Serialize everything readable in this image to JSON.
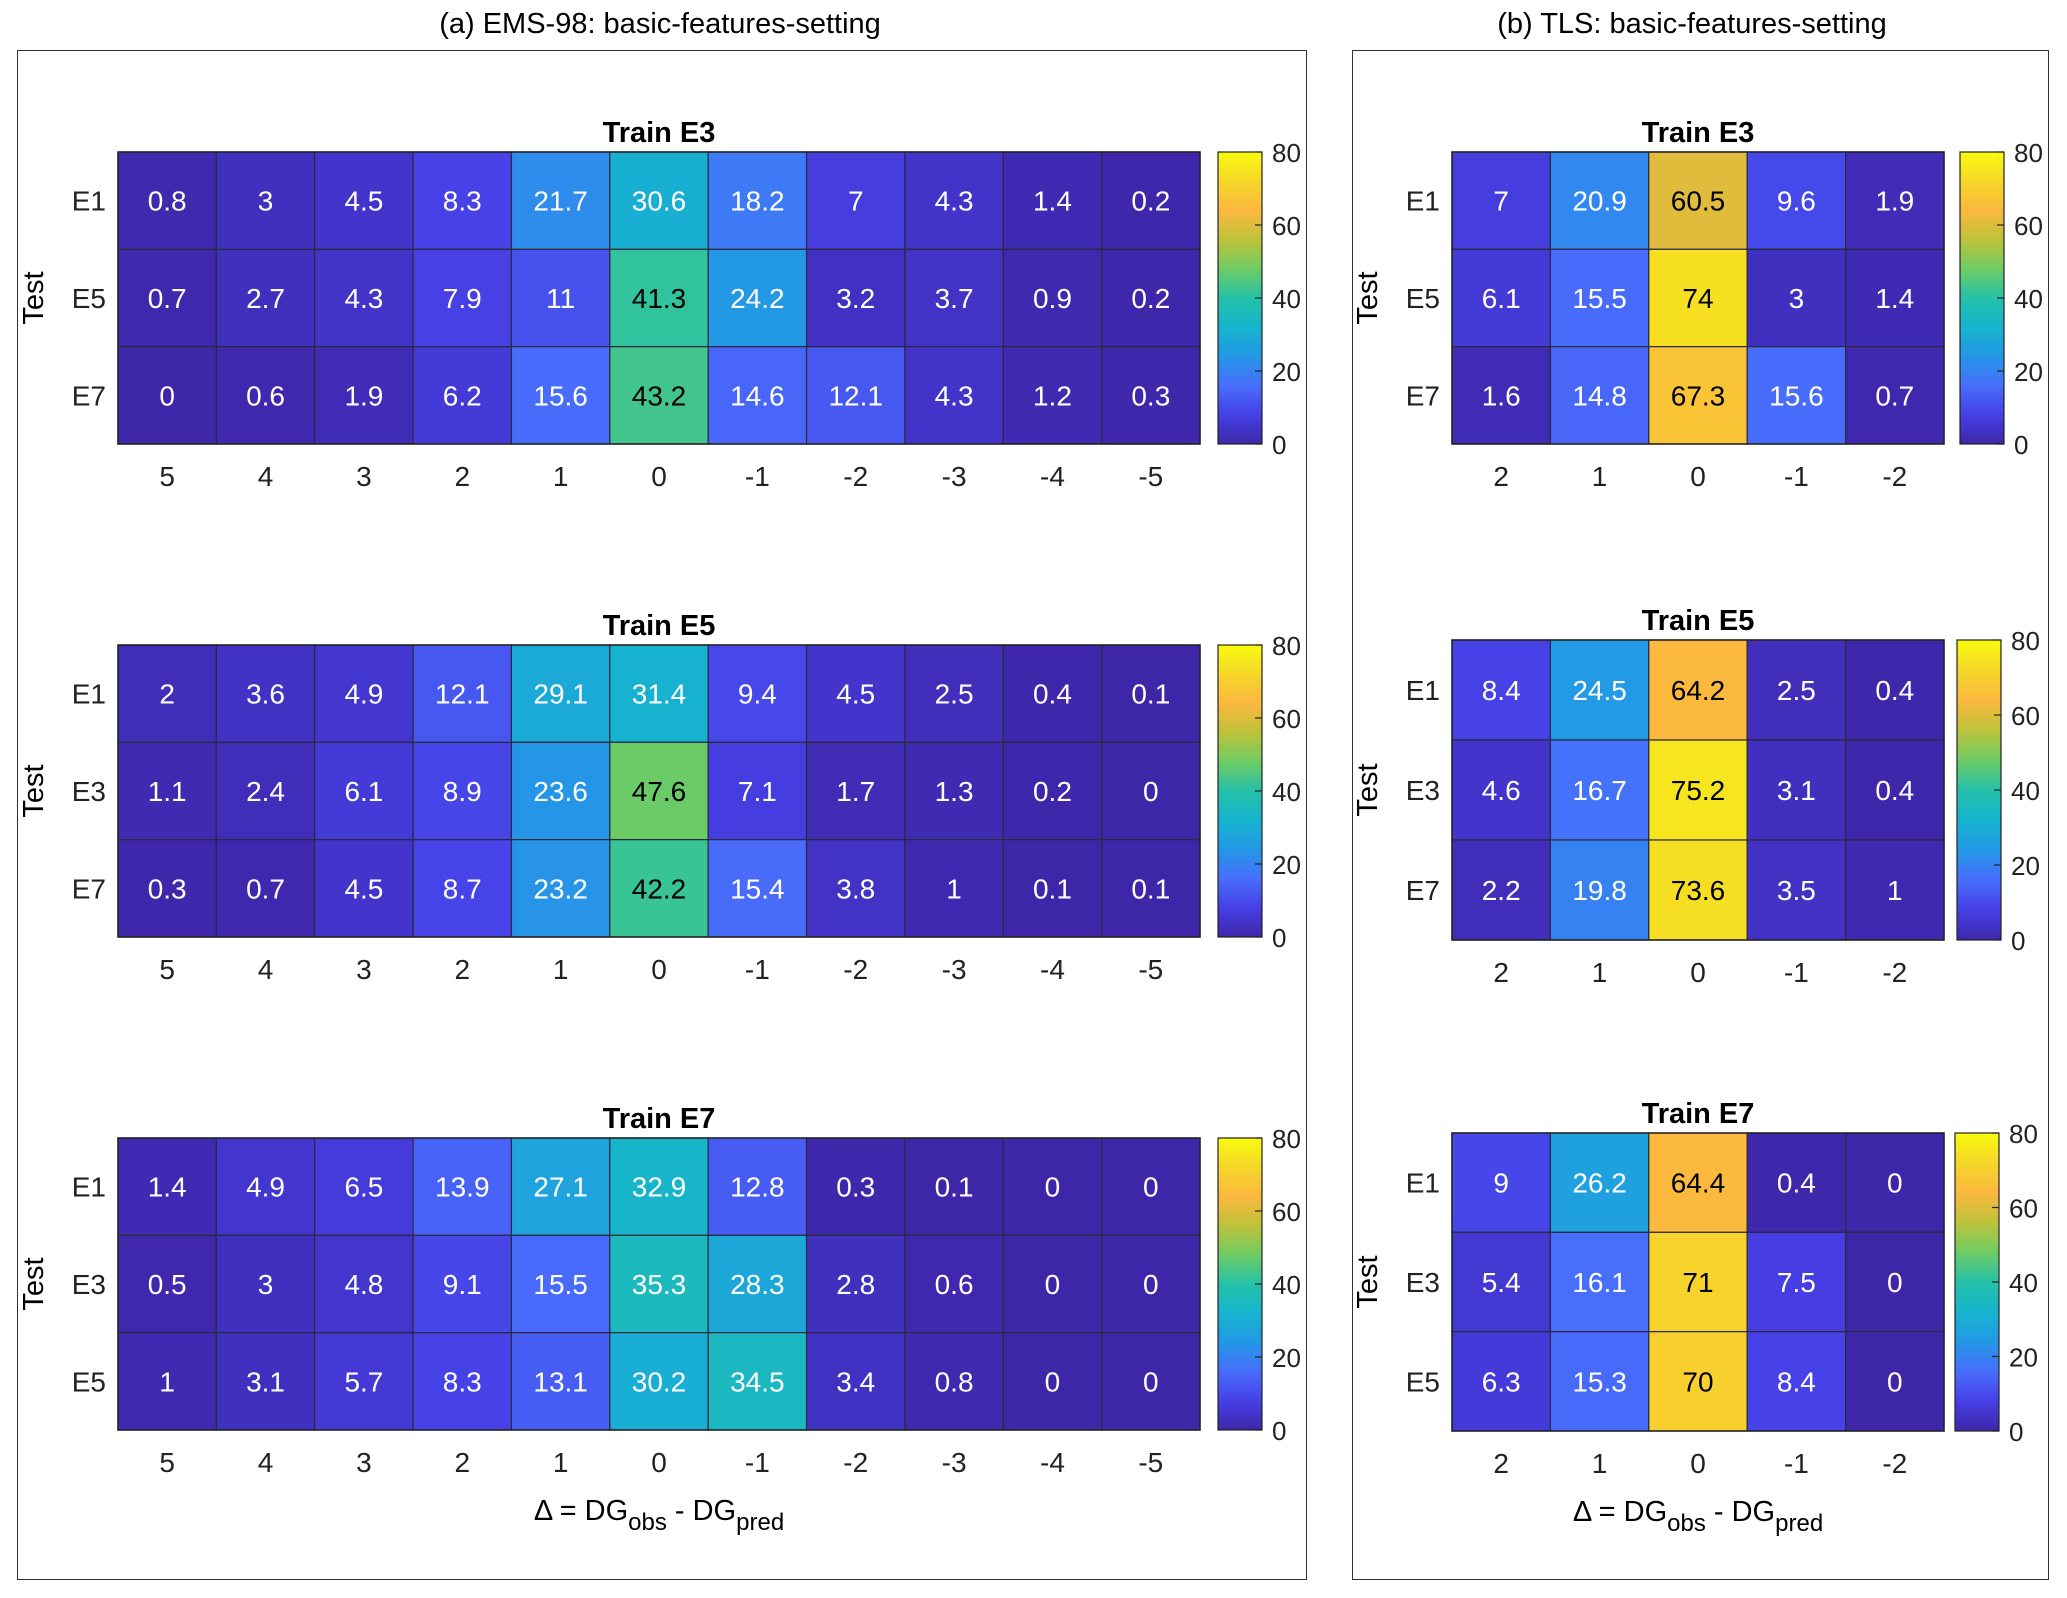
{
  "panels": {
    "a": {
      "title": "(a) EMS-98: basic-features-setting"
    },
    "b": {
      "title": "(b) TLS: basic-features-setting"
    }
  },
  "common": {
    "ylabel": "Test",
    "xlabel_main": "Δ = DG",
    "xlabel_sub1": "obs",
    "xlabel_mid": " - DG",
    "xlabel_sub2": "pred",
    "colorbar_ticks": [
      "0",
      "20",
      "40",
      "60",
      "80"
    ],
    "colormap": "parula",
    "clim": [
      0,
      80
    ]
  },
  "chart_data": [
    {
      "type": "heatmap",
      "panel": "a",
      "title": "Train E3",
      "x": [
        "5",
        "4",
        "3",
        "2",
        "1",
        "0",
        "-1",
        "-2",
        "-3",
        "-4",
        "-5"
      ],
      "y": [
        "E1",
        "E5",
        "E7"
      ],
      "values": [
        [
          0.8,
          3,
          4.5,
          8.3,
          21.7,
          30.6,
          18.2,
          7,
          4.3,
          1.4,
          0.2
        ],
        [
          0.7,
          2.7,
          4.3,
          7.9,
          11,
          41.3,
          24.2,
          3.2,
          3.7,
          0.9,
          0.2
        ],
        [
          0,
          0.6,
          1.9,
          6.2,
          15.6,
          43.2,
          14.6,
          12.1,
          4.3,
          1.2,
          0.3
        ]
      ],
      "labels": [
        [
          "0.8",
          "3",
          "4.5",
          "8.3",
          "21.7",
          "30.6",
          "18.2",
          "7",
          "4.3",
          "1.4",
          "0.2"
        ],
        [
          "0.7",
          "2.7",
          "4.3",
          "7.9",
          "11",
          "41.3",
          "24.2",
          "3.2",
          "3.7",
          "0.9",
          "0.2"
        ],
        [
          "0",
          "0.6",
          "1.9",
          "6.2",
          "15.6",
          "43.2",
          "14.6",
          "12.1",
          "4.3",
          "1.2",
          "0.3"
        ]
      ]
    },
    {
      "type": "heatmap",
      "panel": "a",
      "title": "Train E5",
      "x": [
        "5",
        "4",
        "3",
        "2",
        "1",
        "0",
        "-1",
        "-2",
        "-3",
        "-4",
        "-5"
      ],
      "y": [
        "E1",
        "E3",
        "E7"
      ],
      "values": [
        [
          2,
          3.6,
          4.9,
          12.1,
          29.1,
          31.4,
          9.4,
          4.5,
          2.5,
          0.4,
          0.1
        ],
        [
          1.1,
          2.4,
          6.1,
          8.9,
          23.6,
          47.6,
          7.1,
          1.7,
          1.3,
          0.2,
          0
        ],
        [
          0.3,
          0.7,
          4.5,
          8.7,
          23.2,
          42.2,
          15.4,
          3.8,
          1,
          0.1,
          0.1
        ]
      ],
      "labels": [
        [
          "2",
          "3.6",
          "4.9",
          "12.1",
          "29.1",
          "31.4",
          "9.4",
          "4.5",
          "2.5",
          "0.4",
          "0.1"
        ],
        [
          "1.1",
          "2.4",
          "6.1",
          "8.9",
          "23.6",
          "47.6",
          "7.1",
          "1.7",
          "1.3",
          "0.2",
          "0"
        ],
        [
          "0.3",
          "0.7",
          "4.5",
          "8.7",
          "23.2",
          "42.2",
          "15.4",
          "3.8",
          "1",
          "0.1",
          "0.1"
        ]
      ]
    },
    {
      "type": "heatmap",
      "panel": "a",
      "title": "Train E7",
      "x": [
        "5",
        "4",
        "3",
        "2",
        "1",
        "0",
        "-1",
        "-2",
        "-3",
        "-4",
        "-5"
      ],
      "y": [
        "E1",
        "E3",
        "E5"
      ],
      "values": [
        [
          1.4,
          4.9,
          6.5,
          13.9,
          27.1,
          32.9,
          12.8,
          0.3,
          0.1,
          0,
          0
        ],
        [
          0.5,
          3,
          4.8,
          9.1,
          15.5,
          35.3,
          28.3,
          2.8,
          0.6,
          0,
          0
        ],
        [
          1,
          3.1,
          5.7,
          8.3,
          13.1,
          30.2,
          34.5,
          3.4,
          0.8,
          0,
          0
        ]
      ],
      "labels": [
        [
          "1.4",
          "4.9",
          "6.5",
          "13.9",
          "27.1",
          "32.9",
          "12.8",
          "0.3",
          "0.1",
          "0",
          "0"
        ],
        [
          "0.5",
          "3",
          "4.8",
          "9.1",
          "15.5",
          "35.3",
          "28.3",
          "2.8",
          "0.6",
          "0",
          "0"
        ],
        [
          "1",
          "3.1",
          "5.7",
          "8.3",
          "13.1",
          "30.2",
          "34.5",
          "3.4",
          "0.8",
          "0",
          "0"
        ]
      ]
    },
    {
      "type": "heatmap",
      "panel": "b",
      "title": "Train E3",
      "x": [
        "2",
        "1",
        "0",
        "-1",
        "-2"
      ],
      "y": [
        "E1",
        "E5",
        "E7"
      ],
      "values": [
        [
          7,
          20.9,
          60.5,
          9.6,
          1.9
        ],
        [
          6.1,
          15.5,
          74,
          3,
          1.4
        ],
        [
          1.6,
          14.8,
          67.3,
          15.6,
          0.7
        ]
      ],
      "labels": [
        [
          "7",
          "20.9",
          "60.5",
          "9.6",
          "1.9"
        ],
        [
          "6.1",
          "15.5",
          "74",
          "3",
          "1.4"
        ],
        [
          "1.6",
          "14.8",
          "67.3",
          "15.6",
          "0.7"
        ]
      ]
    },
    {
      "type": "heatmap",
      "panel": "b",
      "title": "Train E5",
      "x": [
        "2",
        "1",
        "0",
        "-1",
        "-2"
      ],
      "y": [
        "E1",
        "E3",
        "E7"
      ],
      "values": [
        [
          8.4,
          24.5,
          64.2,
          2.5,
          0.4
        ],
        [
          4.6,
          16.7,
          75.2,
          3.1,
          0.4
        ],
        [
          2.2,
          19.8,
          73.6,
          3.5,
          1
        ]
      ],
      "labels": [
        [
          "8.4",
          "24.5",
          "64.2",
          "2.5",
          "0.4"
        ],
        [
          "4.6",
          "16.7",
          "75.2",
          "3.1",
          "0.4"
        ],
        [
          "2.2",
          "19.8",
          "73.6",
          "3.5",
          "1"
        ]
      ]
    },
    {
      "type": "heatmap",
      "panel": "b",
      "title": "Train E7",
      "x": [
        "2",
        "1",
        "0",
        "-1",
        "-2"
      ],
      "y": [
        "E1",
        "E3",
        "E5"
      ],
      "values": [
        [
          9,
          26.2,
          64.4,
          0.4,
          0
        ],
        [
          5.4,
          16.1,
          71,
          7.5,
          0
        ],
        [
          6.3,
          15.3,
          70,
          8.4,
          0
        ]
      ],
      "labels": [
        [
          "9",
          "26.2",
          "64.4",
          "0.4",
          "0"
        ],
        [
          "5.4",
          "16.1",
          "71",
          "7.5",
          "0"
        ],
        [
          "6.3",
          "15.3",
          "70",
          "8.4",
          "0"
        ]
      ]
    }
  ]
}
